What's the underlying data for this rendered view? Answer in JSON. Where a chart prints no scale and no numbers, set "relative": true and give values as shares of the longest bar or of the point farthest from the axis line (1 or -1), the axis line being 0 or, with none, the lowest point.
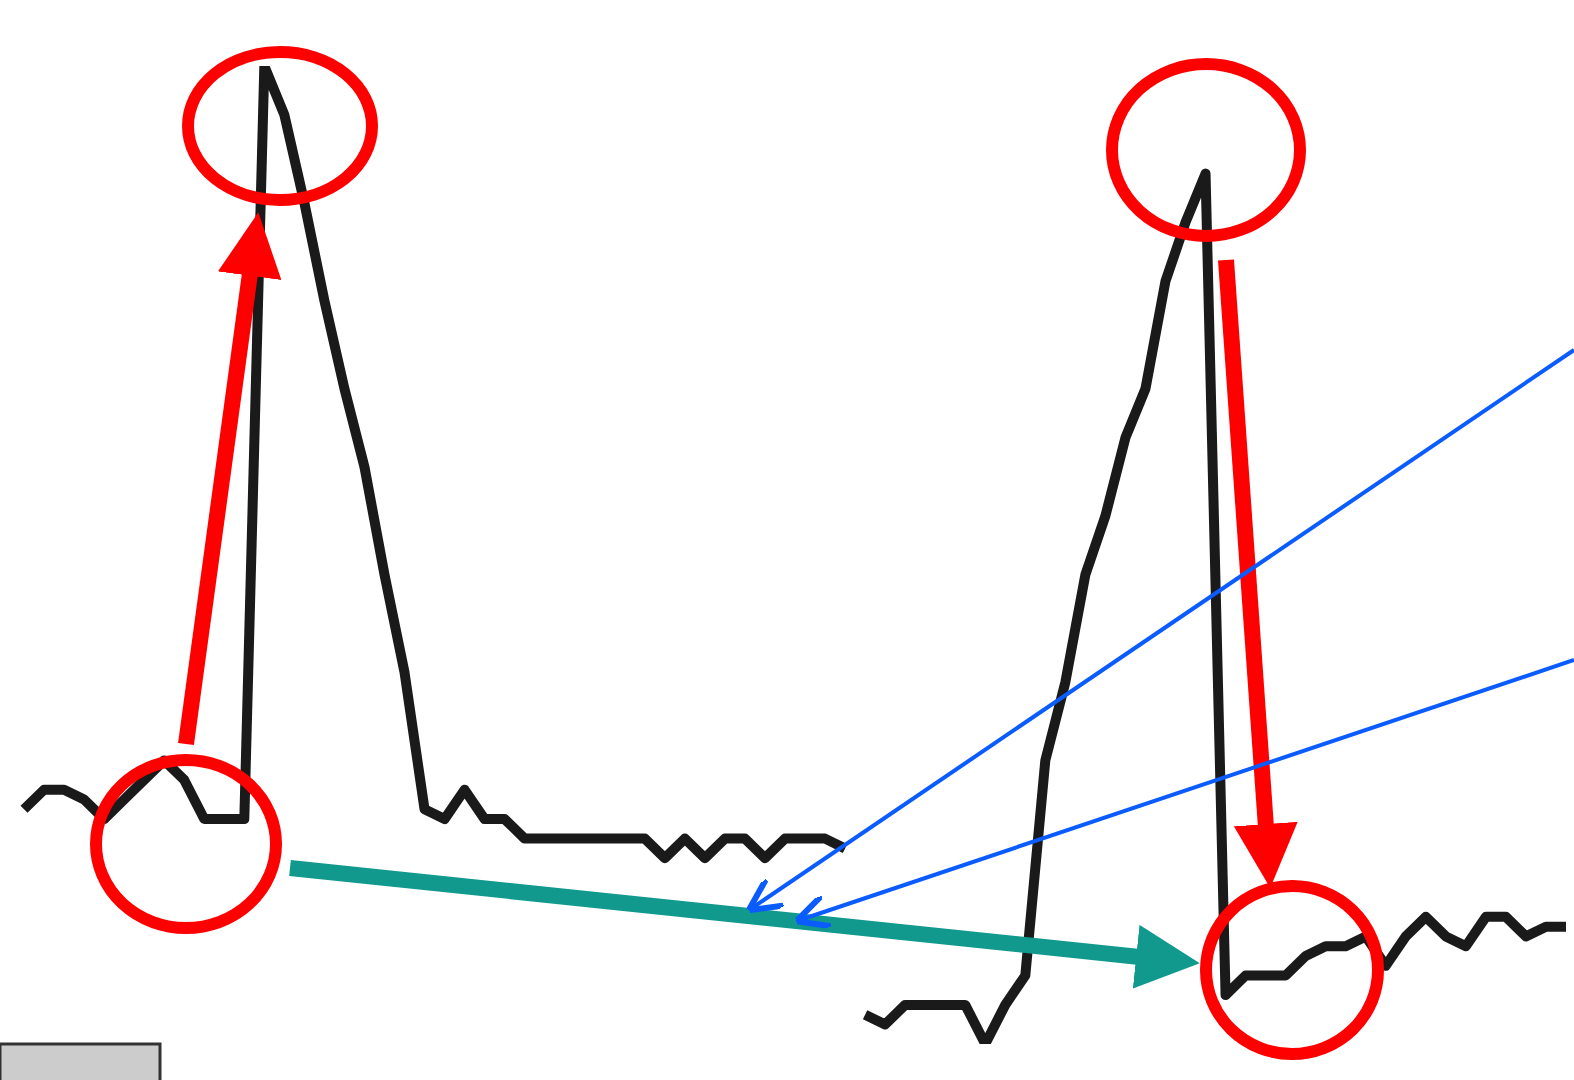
{
  "chart_data": {
    "type": "line",
    "relative": true,
    "marker": "none",
    "line_style": "solid",
    "categories": [
      null,
      null,
      null,
      null,
      null,
      null,
      null,
      null,
      null,
      null,
      null,
      null,
      null,
      null,
      null,
      null,
      null,
      null,
      null,
      null,
      null,
      null,
      null,
      null,
      null,
      null,
      null,
      null,
      null,
      null,
      null,
      null,
      null,
      null,
      null,
      null,
      null,
      null,
      null,
      null,
      null,
      null,
      null,
      null,
      null,
      null,
      null,
      null,
      null,
      null,
      null,
      null,
      null,
      null,
      null,
      null,
      null,
      null,
      null,
      null,
      null,
      null,
      null,
      null,
      null,
      null,
      null,
      null,
      null,
      null,
      null,
      null,
      null,
      null,
      null,
      null,
      null,
      null
    ],
    "series": [
      {
        "color": "#1a1a1a",
        "values": [
          0.24,
          0.26,
          0.26,
          0.25,
          0.23,
          0.25,
          0.27,
          0.29,
          0.27,
          0.23,
          0.23,
          0.23,
          1,
          0.95,
          0.86,
          0.76,
          0.67,
          0.59,
          0.48,
          0.38,
          0.24,
          0.23,
          0.26,
          0.23,
          0.23,
          0.21,
          0.21,
          0.21,
          0.21,
          0.21,
          0.21,
          0.21,
          0.19,
          0.21,
          0.19,
          0.21,
          0.21,
          0.19,
          0.21,
          0.21,
          0.21,
          0.2,
          null,
          null,
          null,
          null,
          null,
          null,
          null,
          null,
          null,
          null,
          null,
          null,
          null,
          null,
          null,
          null,
          null,
          null,
          null,
          null,
          null,
          null,
          null,
          null,
          null,
          null,
          null,
          null,
          null,
          null,
          null,
          null,
          null,
          null,
          null,
          null
        ]
      },
      {
        "color": "#1a1a1a",
        "values": [
          null,
          null,
          null,
          null,
          null,
          null,
          null,
          null,
          null,
          null,
          null,
          null,
          null,
          null,
          null,
          null,
          null,
          null,
          null,
          null,
          null,
          null,
          null,
          null,
          null,
          null,
          null,
          null,
          null,
          null,
          null,
          null,
          null,
          null,
          null,
          null,
          null,
          null,
          null,
          null,
          null,
          null,
          0.03,
          0.02,
          0.04,
          0.04,
          0.04,
          0.04,
          0,
          0.04,
          0.07,
          0.29,
          0.37,
          0.48,
          0.54,
          0.62,
          0.67,
          0.78,
          0.84,
          0.89,
          0.05,
          0.07,
          0.07,
          0.07,
          0.09,
          0.1,
          0.1,
          0.11,
          0.08,
          0.11,
          0.13,
          0.11,
          0.1,
          0.13,
          0.13,
          0.11,
          0.12,
          0.12
        ]
      }
    ]
  }
}
